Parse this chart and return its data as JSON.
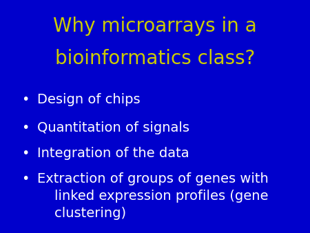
{
  "title_line1": "Why microarrays in a",
  "title_line2": "bioinformatics class?",
  "title_color": "#CCCC00",
  "title_fontsize": 20,
  "background_color": "#0000CC",
  "bullet_color": "#FFFFFF",
  "bullet_fontsize": 14,
  "bullet_items": [
    "Design of chips",
    "Quantitation of signals",
    "Integration of the data",
    "Extraction of groups of genes with\n    linked expression profiles (gene\n    clustering)"
  ],
  "bullet_dot": "•",
  "fig_width": 4.5,
  "fig_height": 3.38,
  "dpi": 100
}
